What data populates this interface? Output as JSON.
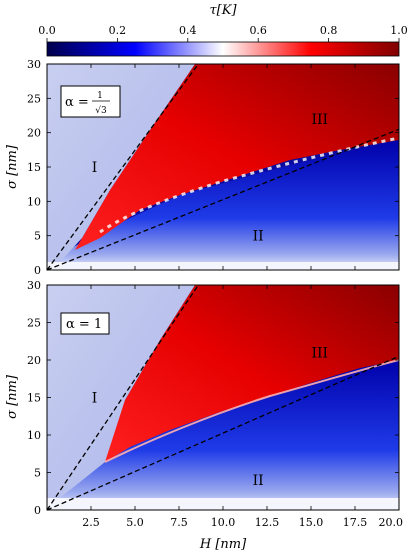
{
  "colorbar": {
    "label": "τ[K]",
    "range": [
      0.0,
      1.0
    ],
    "ticks": [
      "0.0",
      "0.2",
      "0.4",
      "0.6",
      "0.8",
      "1.0"
    ],
    "colormap": "seismic",
    "colors": {
      "low": "#00004c",
      "mid_low": "#0000ff",
      "mid": "#ffffff",
      "mid_high": "#ff0000",
      "high": "#800000"
    }
  },
  "chart_data": [
    {
      "type": "heatmap",
      "annotation": "α = 1/√3",
      "annotation_parts": {
        "prefix": "α =",
        "numerator": "1",
        "denominator": "√3"
      },
      "xlabel": "",
      "ylabel": "σ [nm]",
      "xlim": [
        0,
        20
      ],
      "ylim": [
        0,
        30
      ],
      "x_ticks": [],
      "y_ticks": [
        "0",
        "5",
        "10",
        "15",
        "20",
        "25",
        "30"
      ],
      "dashed_lines": [
        {
          "x": [
            0,
            8.6
          ],
          "y": [
            0,
            30
          ]
        },
        {
          "x": [
            0,
            20
          ],
          "y": [
            0,
            20.5
          ]
        }
      ],
      "regions": [
        {
          "label": "I",
          "x": 2.7,
          "y": 15,
          "value_approx": 0.35
        },
        {
          "label": "II",
          "x": 12.0,
          "y": 5,
          "value_approx": 0.05
        },
        {
          "label": "III",
          "x": 15.5,
          "y": 22,
          "value_approx": 0.9
        }
      ],
      "boundary_lower": [
        [
          2.0,
          3.5
        ],
        [
          5.0,
          10.0
        ],
        [
          10.0,
          14.0
        ],
        [
          15.0,
          17.5
        ],
        [
          20.0,
          21.0
        ]
      ]
    },
    {
      "type": "heatmap",
      "annotation": "α = 1",
      "xlabel": "H [nm]",
      "ylabel": "σ [nm]",
      "xlim": [
        0,
        20
      ],
      "ylim": [
        0,
        30
      ],
      "x_ticks": [
        "2.5",
        "5.0",
        "7.5",
        "10.0",
        "12.5",
        "15.0",
        "17.5",
        "20.0"
      ],
      "y_ticks": [
        "0",
        "5",
        "10",
        "15",
        "20",
        "25",
        "30"
      ],
      "dashed_lines": [
        {
          "x": [
            0,
            8.6
          ],
          "y": [
            0,
            30
          ]
        },
        {
          "x": [
            0,
            20
          ],
          "y": [
            0,
            20.5
          ]
        }
      ],
      "regions": [
        {
          "label": "I",
          "x": 2.7,
          "y": 15,
          "value_approx": 0.35
        },
        {
          "label": "II",
          "x": 12.0,
          "y": 4,
          "value_approx": 0.05
        },
        {
          "label": "III",
          "x": 15.5,
          "y": 21,
          "value_approx": 0.9
        }
      ],
      "boundary_lower": [
        [
          2.0,
          3.5
        ],
        [
          5.0,
          8.5
        ],
        [
          10.0,
          11.0
        ],
        [
          15.0,
          15.5
        ],
        [
          18.0,
          18.5
        ],
        [
          20.0,
          19.0
        ]
      ]
    }
  ]
}
